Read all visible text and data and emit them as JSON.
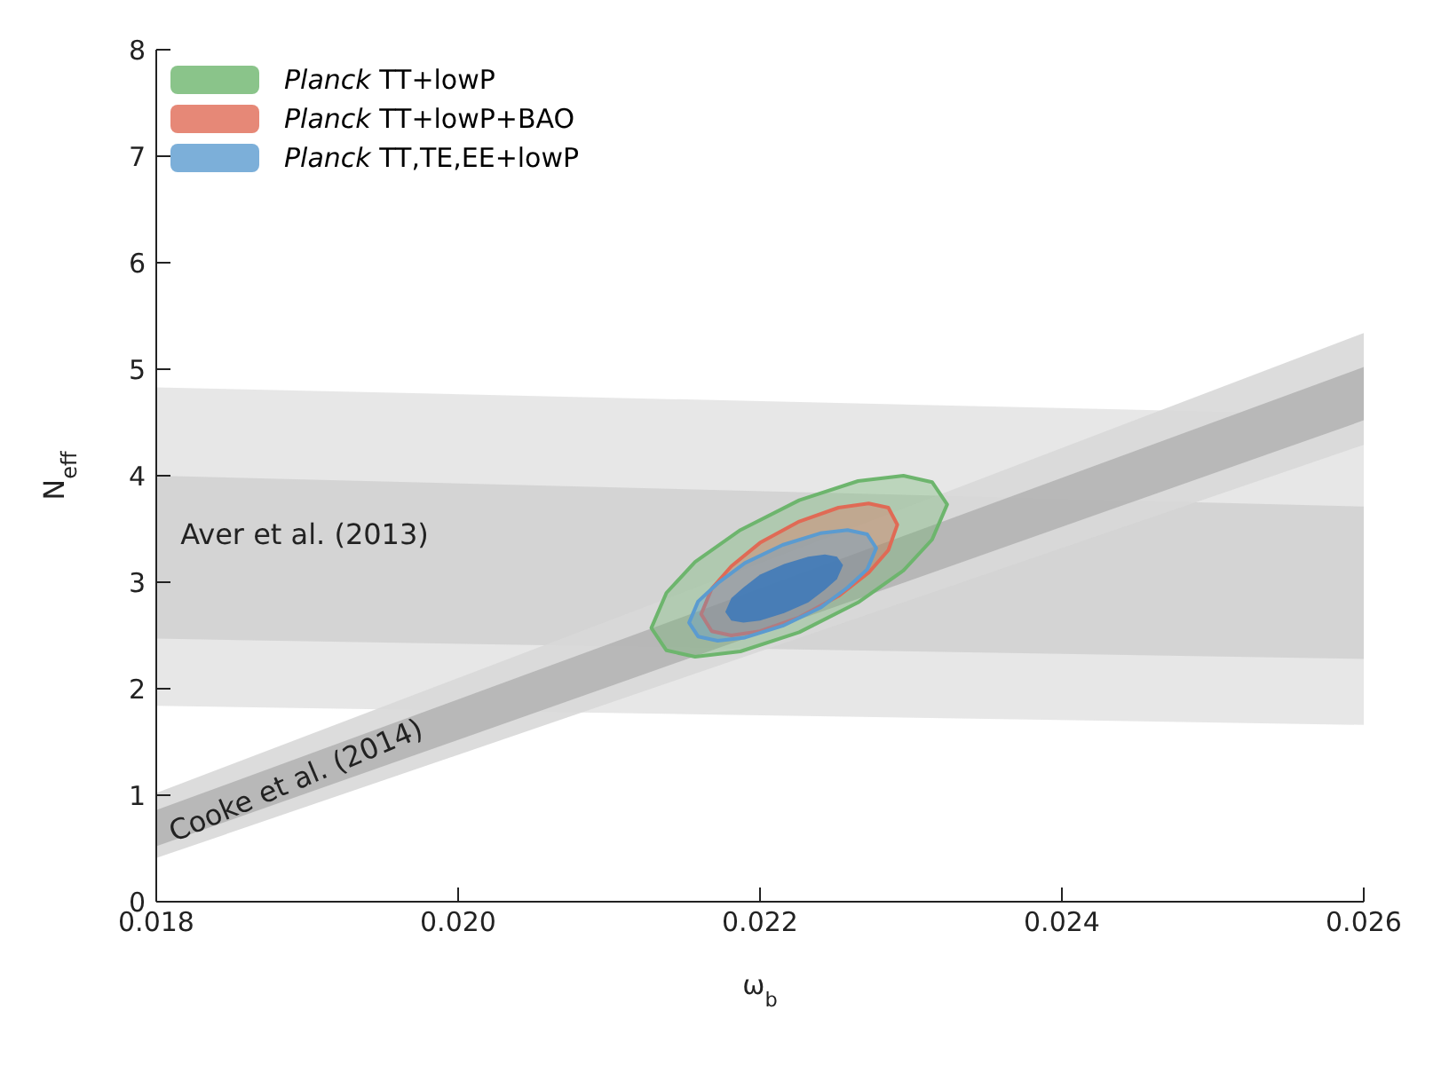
{
  "chart_data": {
    "type": "area",
    "xlabel": "ω$_{b}$",
    "ylabel": "N$_{eff}$",
    "xlim": [
      0.018,
      0.026
    ],
    "xticks": [
      0.018,
      {
        "value": 0.02,
        "label": "0.020"
      },
      0.022,
      0.024,
      0.026
    ],
    "ylim": [
      0,
      8
    ],
    "yticks": [
      0,
      1,
      2,
      3,
      4,
      5,
      6,
      7,
      8
    ],
    "grid": false,
    "legend": "top left",
    "series": [
      {
        "color": "#e4e4e4",
        "x": [
          0.018,
          0.026,
          0.026,
          0.018
        ],
        "values": [
          1.84,
          1.66,
          4.57,
          4.83
        ]
      },
      {
        "color": "#d2d2d2",
        "x": [
          0.018,
          0.026,
          0.026,
          0.018
        ],
        "values": [
          2.47,
          2.28,
          3.71,
          4.0
        ]
      },
      {
        "color": "#d8d8d8",
        "x": [
          0.018,
          0.026,
          0.026,
          0.018
        ],
        "values": [
          0.41,
          4.29,
          5.34,
          1.02
        ]
      },
      {
        "color": "#b4b4b4",
        "x": [
          0.018,
          0.026,
          0.026,
          0.018
        ],
        "values": [
          0.52,
          4.52,
          5.02,
          0.86
        ]
      },
      {
        "name": "Planck TT+lowP",
        "color": "#6db56d",
        "x": [
          0.02128,
          0.02138,
          0.02157,
          0.02187,
          0.02226,
          0.02265,
          0.02295,
          0.02314,
          0.02324,
          0.02314,
          0.02295,
          0.02265,
          0.02226,
          0.02187,
          0.02157,
          0.02138
        ],
        "values": [
          2.57,
          2.36,
          2.3,
          2.35,
          2.53,
          2.81,
          3.11,
          3.4,
          3.73,
          3.94,
          4.0,
          3.95,
          3.77,
          3.49,
          3.19,
          2.9
        ]
      },
      {
        "name": "Planck TT+lowP+BAO",
        "color": "#e06a55",
        "x": [
          0.02161,
          0.02168,
          0.02181,
          0.022,
          0.02226,
          0.02252,
          0.02272,
          0.02285,
          0.02291,
          0.02285,
          0.02272,
          0.02252,
          0.02226,
          0.022,
          0.02181,
          0.02168
        ],
        "values": [
          2.7,
          2.54,
          2.5,
          2.54,
          2.67,
          2.87,
          3.09,
          3.3,
          3.54,
          3.7,
          3.74,
          3.7,
          3.57,
          3.37,
          3.15,
          2.94
        ]
      },
      {
        "name": "Planck TT,TE,EE+lowP",
        "color": "#5b9bd0",
        "x": [
          0.02153,
          0.02159,
          0.02172,
          0.0219,
          0.02215,
          0.0224,
          0.02258,
          0.02271,
          0.02277,
          0.02271,
          0.02258,
          0.0224,
          0.02215,
          0.0219,
          0.02172,
          0.02159
        ],
        "values": [
          2.62,
          2.49,
          2.45,
          2.48,
          2.59,
          2.76,
          2.95,
          3.12,
          3.32,
          3.45,
          3.49,
          3.46,
          3.35,
          3.18,
          2.99,
          2.82
        ]
      },
      {
        "color": "#3f7ab8",
        "x": [
          0.02177,
          0.02181,
          0.02189,
          0.022,
          0.02216,
          0.02232,
          0.02243,
          0.02251,
          0.02255,
          0.02251,
          0.02243,
          0.02232,
          0.02216,
          0.022,
          0.02189,
          0.02181
        ],
        "values": [
          2.72,
          2.64,
          2.62,
          2.64,
          2.71,
          2.81,
          2.93,
          3.03,
          3.16,
          3.24,
          3.26,
          3.24,
          3.17,
          3.07,
          2.95,
          2.85
        ]
      }
    ],
    "annotations": [
      "Aver et al. (2013)",
      "Cooke et al. (2014)"
    ]
  }
}
